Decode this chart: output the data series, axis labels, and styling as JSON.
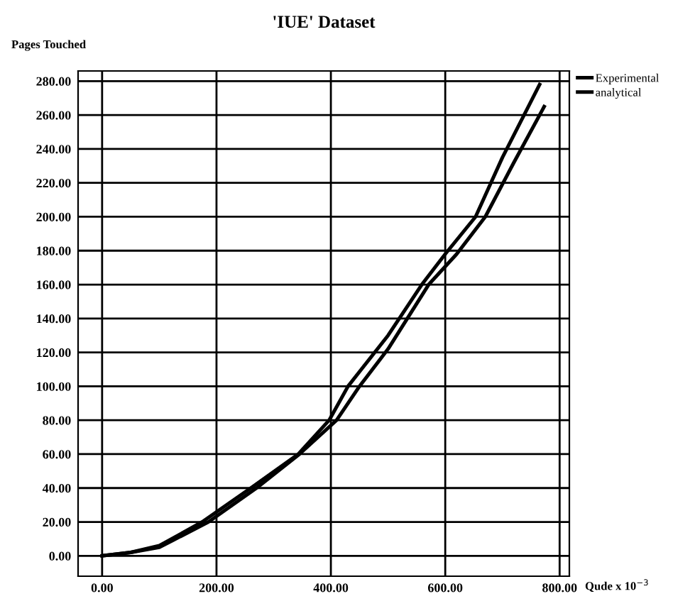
{
  "chart_data": {
    "type": "line",
    "title": "'IUE' Dataset",
    "ylabel": "Pages Touched",
    "xlabel": "Qude x 10$^{−3}$",
    "series": [
      {
        "name": "Experimental",
        "color": "#000000",
        "x": [
          0,
          50,
          100,
          175,
          260,
          343,
          397,
          430,
          500,
          559,
          600,
          653,
          700,
          765
        ],
        "values": [
          0,
          2,
          6,
          20,
          40,
          60,
          80,
          100,
          130,
          160,
          178,
          200,
          235,
          278
        ]
      },
      {
        "name": "analytical",
        "color": "#000000",
        "x": [
          0,
          50,
          100,
          186,
          270,
          345,
          410,
          450,
          500,
          571,
          620,
          670,
          720,
          773
        ],
        "values": [
          0,
          2,
          5,
          20,
          40,
          60,
          80,
          100,
          122,
          160,
          178,
          200,
          232,
          265
        ]
      }
    ],
    "xlim": [
      -42,
      817
    ],
    "ylim": [
      -12,
      286
    ],
    "xticks": [
      {
        "value": 0,
        "label": "0.00"
      },
      {
        "value": 200,
        "label": "200.00"
      },
      {
        "value": 400,
        "label": "400.00"
      },
      {
        "value": 600,
        "label": "600.00"
      },
      {
        "value": 800,
        "label": "800.00"
      }
    ],
    "yticks": [
      {
        "value": 0,
        "label": "0.00"
      },
      {
        "value": 20,
        "label": "20.00"
      },
      {
        "value": 40,
        "label": "40.00"
      },
      {
        "value": 60,
        "label": "60.00"
      },
      {
        "value": 80,
        "label": "80.00"
      },
      {
        "value": 100,
        "label": "100.00"
      },
      {
        "value": 120,
        "label": "120.00"
      },
      {
        "value": 140,
        "label": "140.00"
      },
      {
        "value": 160,
        "label": "160.00"
      },
      {
        "value": 180,
        "label": "180.00"
      },
      {
        "value": 200,
        "label": "200.00"
      },
      {
        "value": 220,
        "label": "220.00"
      },
      {
        "value": 240,
        "label": "240.00"
      },
      {
        "value": 260,
        "label": "260.00"
      },
      {
        "value": 280,
        "label": "280.00"
      }
    ],
    "grid": true,
    "legend": "top right",
    "line_style": "solid",
    "marker": "none"
  }
}
